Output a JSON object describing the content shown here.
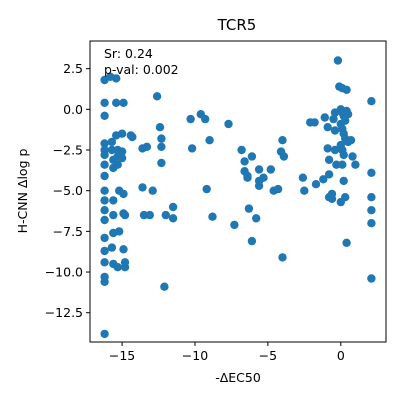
{
  "chart_data": {
    "type": "scatter",
    "title": "TCR5",
    "xlabel": "-ΔEC50",
    "ylabel": "H-CNN Δlog p",
    "xlim": [
      -17.2,
      3.1
    ],
    "ylim": [
      -14.3,
      4.2
    ],
    "xticks": [
      -15,
      -10,
      -5,
      0
    ],
    "xtick_labels": [
      "−15",
      "−10",
      "−5",
      "0"
    ],
    "yticks": [
      2.5,
      0.0,
      -2.5,
      -5.0,
      -7.5,
      -10.0,
      -12.5
    ],
    "ytick_labels": [
      "2.5",
      "0.0",
      "−2.5",
      "−5.0",
      "−7.5",
      "−10.0",
      "−12.5"
    ],
    "annotations": [
      "Sr: 0.24",
      "p-val: 0.002"
    ],
    "grid": false,
    "marker_color": "#1f77b4",
    "series": [
      {
        "points": [
          [
            -16.2,
            1.8
          ],
          [
            -15.8,
            2.0
          ],
          [
            -15.4,
            1.9
          ],
          [
            -16.2,
            0.4
          ],
          [
            -16.2,
            -0.4
          ],
          [
            -15.4,
            0.4
          ],
          [
            -14.9,
            0.4
          ],
          [
            -16.2,
            -2.1
          ],
          [
            -16.2,
            -2.5
          ],
          [
            -16.2,
            -2.8
          ],
          [
            -16.2,
            -3.4
          ],
          [
            -16.2,
            -4.1
          ],
          [
            -16.2,
            -5.0
          ],
          [
            -16.2,
            -5.6
          ],
          [
            -16.2,
            -6.2
          ],
          [
            -16.2,
            -6.8
          ],
          [
            -16.2,
            -7.9
          ],
          [
            -16.2,
            -8.7
          ],
          [
            -16.2,
            -9.4
          ],
          [
            -16.2,
            -10.3
          ],
          [
            -16.2,
            -10.6
          ],
          [
            -16.2,
            -13.8
          ],
          [
            -15.7,
            -2.0
          ],
          [
            -15.7,
            -2.5
          ],
          [
            -15.6,
            -3.1
          ],
          [
            -15.6,
            -3.6
          ],
          [
            -15.6,
            -5.6
          ],
          [
            -15.6,
            -6.5
          ],
          [
            -15.4,
            -1.6
          ],
          [
            -15.3,
            -2.5
          ],
          [
            -15.3,
            -2.9
          ],
          [
            -15.3,
            -3.4
          ],
          [
            -15.2,
            -5.0
          ],
          [
            -15.2,
            -7.5
          ],
          [
            -15.0,
            -1.5
          ],
          [
            -15.0,
            -2.6
          ],
          [
            -15.0,
            -3.0
          ],
          [
            -14.9,
            -5.2
          ],
          [
            -14.9,
            -6.4
          ],
          [
            -15.6,
            -7.6
          ],
          [
            -15.7,
            -8.5
          ],
          [
            -15.6,
            -9.5
          ],
          [
            -15.3,
            -9.7
          ],
          [
            -14.9,
            -8.6
          ],
          [
            -14.8,
            -9.4
          ],
          [
            -14.8,
            -9.7
          ],
          [
            -14.8,
            -6.5
          ],
          [
            -14.4,
            -1.6
          ],
          [
            -14.3,
            -1.7
          ],
          [
            -13.6,
            -2.4
          ],
          [
            -13.3,
            -2.3
          ],
          [
            -13.6,
            -4.8
          ],
          [
            -13.5,
            -6.5
          ],
          [
            -13.1,
            -6.5
          ],
          [
            -12.9,
            -5.0
          ],
          [
            -12.6,
            0.8
          ],
          [
            -12.4,
            -1.1
          ],
          [
            -12.3,
            -1.8
          ],
          [
            -12.3,
            -2.3
          ],
          [
            -12.3,
            -3.3
          ],
          [
            -12.0,
            -6.5
          ],
          [
            -12.1,
            -10.9
          ],
          [
            -11.5,
            -6.0
          ],
          [
            -11.5,
            -6.7
          ],
          [
            -10.3,
            -0.6
          ],
          [
            -10.2,
            -2.4
          ],
          [
            -9.6,
            -0.3
          ],
          [
            -9.3,
            -0.6
          ],
          [
            -9.2,
            -4.9
          ],
          [
            -9.0,
            -1.9
          ],
          [
            -8.8,
            -6.6
          ],
          [
            -7.7,
            -0.9
          ],
          [
            -7.3,
            -7.1
          ],
          [
            -6.8,
            -2.5
          ],
          [
            -6.6,
            -3.2
          ],
          [
            -6.6,
            -3.8
          ],
          [
            -6.4,
            -4.1
          ],
          [
            -6.4,
            -4.2
          ],
          [
            -6.1,
            -2.9
          ],
          [
            -6.3,
            -6.1
          ],
          [
            -6.1,
            -8.1
          ],
          [
            -5.8,
            -6.7
          ],
          [
            -5.6,
            -3.7
          ],
          [
            -5.6,
            -4.4
          ],
          [
            -5.6,
            -4.7
          ],
          [
            -5.3,
            -4.2
          ],
          [
            -4.8,
            -3.7
          ],
          [
            -4.6,
            -5.0
          ],
          [
            -4.3,
            -4.9
          ],
          [
            -4.0,
            -1.9
          ],
          [
            -4.1,
            -2.6
          ],
          [
            -3.9,
            -2.9
          ],
          [
            -4.0,
            -9.1
          ],
          [
            -2.6,
            -4.2
          ],
          [
            -2.5,
            -5.0
          ],
          [
            -2.1,
            -0.8
          ],
          [
            -1.8,
            -0.8
          ],
          [
            -1.7,
            -4.6
          ],
          [
            -1.2,
            -4.3
          ],
          [
            -1.1,
            -0.5
          ],
          [
            -0.9,
            -1.1
          ],
          [
            -0.9,
            -2.4
          ],
          [
            -0.8,
            -3.1
          ],
          [
            -0.8,
            -4.0
          ],
          [
            -0.8,
            -5.4
          ],
          [
            -0.6,
            -5.5
          ],
          [
            -0.6,
            -5.2
          ],
          [
            -0.5,
            -0.6
          ],
          [
            -0.4,
            -0.2
          ],
          [
            -0.4,
            -1.3
          ],
          [
            -0.4,
            -2.5
          ],
          [
            -0.3,
            -3.4
          ],
          [
            -0.2,
            3.0
          ],
          [
            -0.1,
            1.4
          ],
          [
            0.1,
            1.3
          ],
          [
            0.4,
            1.2
          ],
          [
            0.0,
            0.0
          ],
          [
            0.1,
            -0.2
          ],
          [
            0.2,
            -0.4
          ],
          [
            0.3,
            -0.7
          ],
          [
            0.4,
            -0.1
          ],
          [
            0.5,
            -0.3
          ],
          [
            0.0,
            -0.9
          ],
          [
            0.1,
            -1.2
          ],
          [
            0.2,
            -1.5
          ],
          [
            0.3,
            -1.8
          ],
          [
            0.5,
            -2.0
          ],
          [
            0.0,
            -2.2
          ],
          [
            0.1,
            -2.5
          ],
          [
            0.2,
            -2.8
          ],
          [
            0.1,
            -3.4
          ],
          [
            0.2,
            -4.4
          ],
          [
            0.3,
            -5.4
          ],
          [
            0.0,
            -5.7
          ],
          [
            0.4,
            -8.2
          ],
          [
            0.7,
            -1.9
          ],
          [
            1.0,
            -3.4
          ],
          [
            0.8,
            -2.9
          ],
          [
            2.1,
            0.5
          ],
          [
            2.1,
            -3.9
          ],
          [
            2.1,
            -5.4
          ],
          [
            2.1,
            -6.2
          ],
          [
            2.1,
            -7.0
          ],
          [
            2.1,
            -10.4
          ]
        ]
      }
    ]
  }
}
